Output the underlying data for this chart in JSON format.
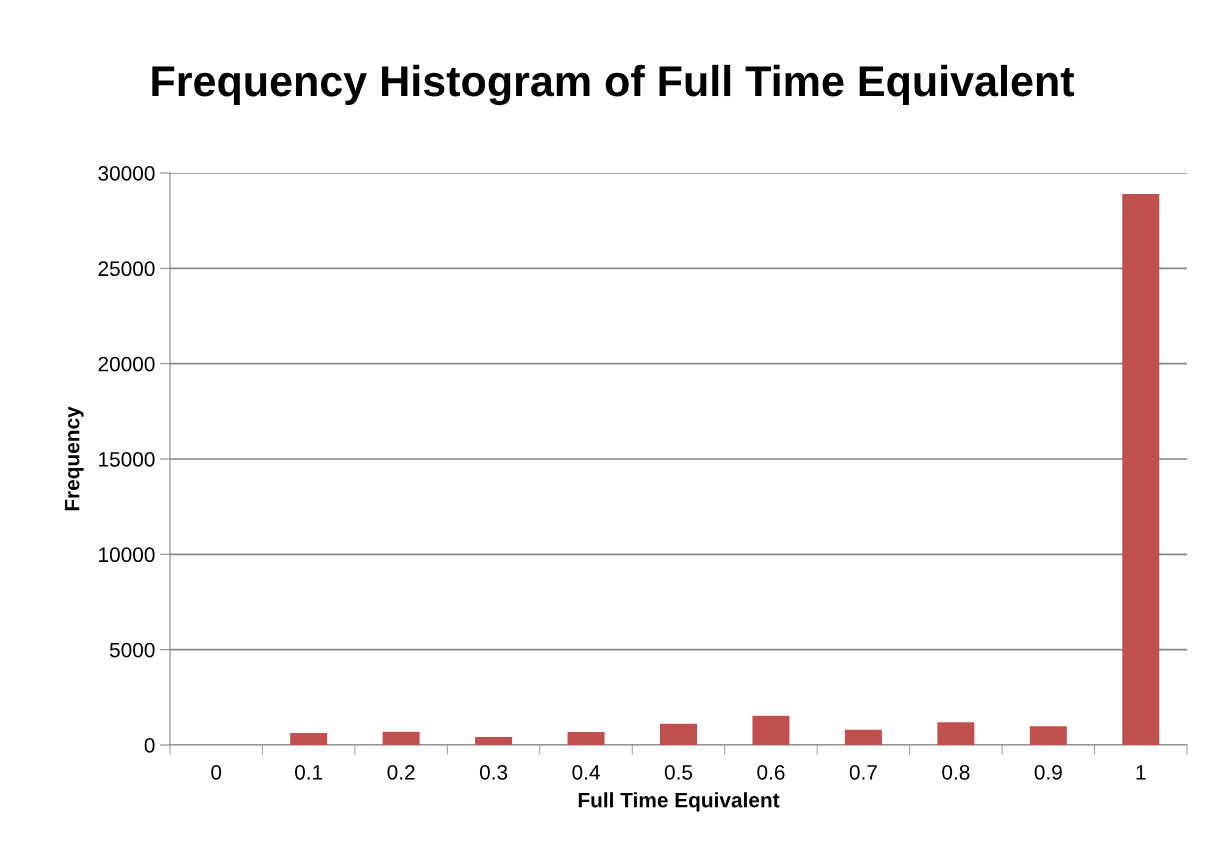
{
  "chart_data": {
    "type": "bar",
    "title": "Frequency Histogram of Full Time Equivalent",
    "xlabel": "Full Time Equivalent",
    "ylabel": "Frequency",
    "categories": [
      "0",
      "0.1",
      "0.2",
      "0.3",
      "0.4",
      "0.5",
      "0.6",
      "0.7",
      "0.8",
      "0.9",
      "1"
    ],
    "values": [
      0,
      630,
      700,
      420,
      680,
      1120,
      1540,
      800,
      1190,
      980,
      28900
    ],
    "color": "#c0504d",
    "ylim": [
      0,
      30000
    ],
    "yticks": [
      0,
      5000,
      10000,
      15000,
      20000,
      25000,
      30000
    ],
    "grid": "y",
    "legend": false
  }
}
